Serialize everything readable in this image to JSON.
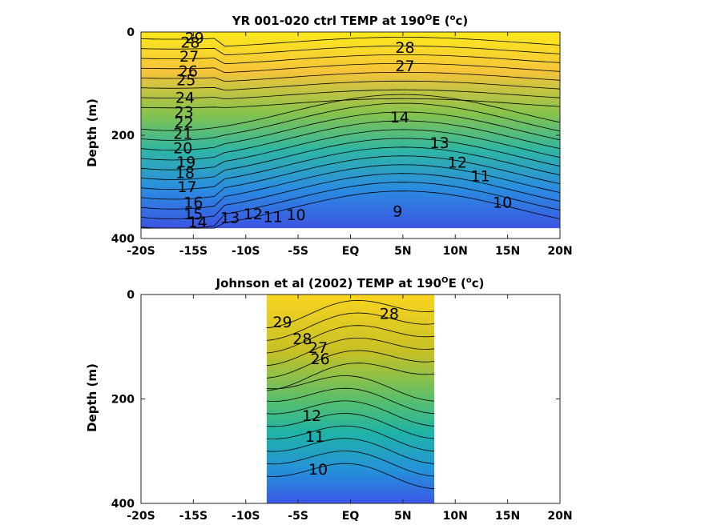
{
  "chart_data": [
    {
      "type": "contour",
      "title": "YR 001-020 ctrl TEMP at 190",
      "title_sup": "O",
      "title_tail": "E (",
      "title_sup2": "o",
      "title_end": "c)",
      "ylabel": "Depth (m)",
      "xlabel": "",
      "xlim": [
        -20,
        20
      ],
      "ylim": [
        0,
        400
      ],
      "y_reversed": true,
      "colormap": "parula",
      "data_extent": [
        -20,
        20
      ],
      "x_ticks": [
        "-20S",
        "-15S",
        "-10S",
        "-5S",
        "EQ",
        "5N",
        "10N",
        "15N",
        "20N"
      ],
      "y_ticks": [
        "0",
        "200",
        "400"
      ],
      "contour_labels": [
        {
          "text": "29",
          "x": -14.9,
          "y": 22
        },
        {
          "text": "28",
          "x": -15.3,
          "y": 30
        },
        {
          "text": "27",
          "x": -15.4,
          "y": 57
        },
        {
          "text": "26",
          "x": -15.5,
          "y": 86
        },
        {
          "text": "25",
          "x": -15.7,
          "y": 103
        },
        {
          "text": "24",
          "x": -15.8,
          "y": 137
        },
        {
          "text": "23",
          "x": -15.9,
          "y": 165
        },
        {
          "text": "22",
          "x": -15.9,
          "y": 185
        },
        {
          "text": "21",
          "x": -16.0,
          "y": 207
        },
        {
          "text": "20",
          "x": -16.0,
          "y": 235
        },
        {
          "text": "19",
          "x": -15.7,
          "y": 262
        },
        {
          "text": "18",
          "x": -15.8,
          "y": 283
        },
        {
          "text": "17",
          "x": -15.6,
          "y": 310
        },
        {
          "text": "16",
          "x": -15.0,
          "y": 340
        },
        {
          "text": "15",
          "x": -15.0,
          "y": 363
        },
        {
          "text": "14",
          "x": -14.6,
          "y": 378
        },
        {
          "text": "13",
          "x": -11.5,
          "y": 370
        },
        {
          "text": "12",
          "x": -9.3,
          "y": 363
        },
        {
          "text": "11",
          "x": -7.4,
          "y": 368
        },
        {
          "text": "10",
          "x": -5.2,
          "y": 364
        },
        {
          "text": "9",
          "x": 4.5,
          "y": 357
        },
        {
          "text": "28",
          "x": 5.2,
          "y": 40
        },
        {
          "text": "27",
          "x": 5.2,
          "y": 76
        },
        {
          "text": "14",
          "x": 4.7,
          "y": 175
        },
        {
          "text": "13",
          "x": 8.5,
          "y": 225
        },
        {
          "text": "12",
          "x": 10.2,
          "y": 263
        },
        {
          "text": "11",
          "x": 12.4,
          "y": 289
        },
        {
          "text": "10",
          "x": 14.5,
          "y": 340
        }
      ]
    },
    {
      "type": "contour",
      "title": "Johnson et al (2002) TEMP at 190",
      "title_sup": "O",
      "title_tail": "E (",
      "title_sup2": "o",
      "title_end": "c)",
      "ylabel": "Depth (m)",
      "xlabel": "",
      "xlim": [
        -20,
        20
      ],
      "ylim": [
        0,
        400
      ],
      "y_reversed": true,
      "colormap": "parula",
      "data_extent": [
        -8,
        8
      ],
      "x_ticks": [
        "-20S",
        "-15S",
        "-10S",
        "-5S",
        "EQ",
        "5N",
        "10N",
        "15N",
        "20N"
      ],
      "y_ticks": [
        "0",
        "200",
        "400"
      ],
      "contour_labels": [
        {
          "text": "29",
          "x": -6.5,
          "y": 63
        },
        {
          "text": "28",
          "x": -4.6,
          "y": 95
        },
        {
          "text": "27",
          "x": -3.1,
          "y": 112
        },
        {
          "text": "26",
          "x": -2.9,
          "y": 133
        },
        {
          "text": "12",
          "x": -3.7,
          "y": 242
        },
        {
          "text": "11",
          "x": -3.4,
          "y": 282
        },
        {
          "text": "10",
          "x": -3.1,
          "y": 345
        },
        {
          "text": "28",
          "x": 3.7,
          "y": 47
        }
      ]
    }
  ]
}
